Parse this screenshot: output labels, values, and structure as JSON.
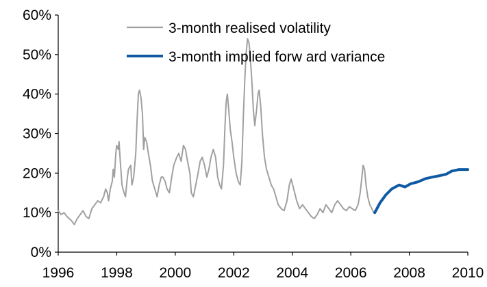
{
  "chart_data": {
    "type": "line",
    "title": "",
    "xlabel": "",
    "ylabel": "",
    "xlim": [
      1996,
      2010
    ],
    "ylim": [
      0,
      60
    ],
    "grid": false,
    "legend_position": "top-center",
    "x_ticks": [
      "1996",
      "1998",
      "2000",
      "2002",
      "2004",
      "2006",
      "2008",
      "2010"
    ],
    "y_ticks": [
      "0%",
      "10%",
      "20%",
      "30%",
      "40%",
      "50%",
      "60%"
    ],
    "series": [
      {
        "name": "3-month realised volatility",
        "color": "#a0a0a0",
        "points": [
          [
            1996.0,
            10.5
          ],
          [
            1996.1,
            9.5
          ],
          [
            1996.2,
            10.0
          ],
          [
            1996.3,
            9.0
          ],
          [
            1996.45,
            8.0
          ],
          [
            1996.55,
            7.0
          ],
          [
            1996.65,
            8.5
          ],
          [
            1996.75,
            9.5
          ],
          [
            1996.85,
            10.5
          ],
          [
            1996.95,
            9.0
          ],
          [
            1997.05,
            8.5
          ],
          [
            1997.15,
            11.0
          ],
          [
            1997.25,
            12.0
          ],
          [
            1997.35,
            13.0
          ],
          [
            1997.45,
            12.5
          ],
          [
            1997.55,
            14.0
          ],
          [
            1997.62,
            16.0
          ],
          [
            1997.68,
            15.0
          ],
          [
            1997.72,
            13.0
          ],
          [
            1997.78,
            16.0
          ],
          [
            1997.85,
            18.0
          ],
          [
            1997.88,
            21.0
          ],
          [
            1997.92,
            19.0
          ],
          [
            1997.97,
            25.0
          ],
          [
            1998.0,
            27.0
          ],
          [
            1998.05,
            26.0
          ],
          [
            1998.08,
            28.0
          ],
          [
            1998.12,
            23.0
          ],
          [
            1998.18,
            17.0
          ],
          [
            1998.25,
            15.0
          ],
          [
            1998.3,
            14.0
          ],
          [
            1998.35,
            18.0
          ],
          [
            1998.4,
            21.0
          ],
          [
            1998.48,
            22.0
          ],
          [
            1998.52,
            17.0
          ],
          [
            1998.58,
            19.0
          ],
          [
            1998.65,
            25.0
          ],
          [
            1998.7,
            34.0
          ],
          [
            1998.74,
            40.0
          ],
          [
            1998.78,
            41.0
          ],
          [
            1998.83,
            39.0
          ],
          [
            1998.88,
            35.0
          ],
          [
            1998.92,
            26.0
          ],
          [
            1998.96,
            29.0
          ],
          [
            1999.02,
            28.0
          ],
          [
            1999.08,
            25.0
          ],
          [
            1999.15,
            22.0
          ],
          [
            1999.22,
            18.0
          ],
          [
            1999.3,
            16.0
          ],
          [
            1999.38,
            14.0
          ],
          [
            1999.45,
            17.0
          ],
          [
            1999.52,
            19.0
          ],
          [
            1999.58,
            19.0
          ],
          [
            1999.65,
            18.0
          ],
          [
            1999.72,
            16.0
          ],
          [
            1999.8,
            15.0
          ],
          [
            1999.88,
            19.0
          ],
          [
            1999.95,
            22.0
          ],
          [
            2000.05,
            24.0
          ],
          [
            2000.12,
            25.0
          ],
          [
            2000.2,
            23.0
          ],
          [
            2000.28,
            27.0
          ],
          [
            2000.35,
            26.0
          ],
          [
            2000.42,
            23.0
          ],
          [
            2000.5,
            20.0
          ],
          [
            2000.55,
            15.0
          ],
          [
            2000.62,
            14.0
          ],
          [
            2000.7,
            17.0
          ],
          [
            2000.78,
            20.0
          ],
          [
            2000.85,
            23.0
          ],
          [
            2000.92,
            24.0
          ],
          [
            2001.0,
            22.0
          ],
          [
            2001.08,
            19.0
          ],
          [
            2001.15,
            21.0
          ],
          [
            2001.22,
            24.0
          ],
          [
            2001.3,
            26.0
          ],
          [
            2001.38,
            24.0
          ],
          [
            2001.45,
            19.0
          ],
          [
            2001.52,
            17.0
          ],
          [
            2001.58,
            16.0
          ],
          [
            2001.65,
            22.0
          ],
          [
            2001.7,
            32.0
          ],
          [
            2001.74,
            38.0
          ],
          [
            2001.78,
            40.0
          ],
          [
            2001.83,
            36.0
          ],
          [
            2001.88,
            31.0
          ],
          [
            2001.94,
            28.0
          ],
          [
            2002.0,
            24.0
          ],
          [
            2002.08,
            20.0
          ],
          [
            2002.15,
            18.0
          ],
          [
            2002.22,
            17.0
          ],
          [
            2002.28,
            23.0
          ],
          [
            2002.33,
            35.0
          ],
          [
            2002.38,
            44.0
          ],
          [
            2002.42,
            50.0
          ],
          [
            2002.47,
            54.0
          ],
          [
            2002.52,
            53.0
          ],
          [
            2002.56,
            50.0
          ],
          [
            2002.62,
            43.0
          ],
          [
            2002.67,
            36.0
          ],
          [
            2002.72,
            32.0
          ],
          [
            2002.78,
            36.0
          ],
          [
            2002.83,
            40.0
          ],
          [
            2002.87,
            41.0
          ],
          [
            2002.92,
            37.0
          ],
          [
            2002.98,
            30.0
          ],
          [
            2003.05,
            24.0
          ],
          [
            2003.12,
            21.0
          ],
          [
            2003.2,
            19.0
          ],
          [
            2003.28,
            17.0
          ],
          [
            2003.36,
            16.0
          ],
          [
            2003.44,
            14.0
          ],
          [
            2003.52,
            12.0
          ],
          [
            2003.62,
            11.0
          ],
          [
            2003.72,
            10.5
          ],
          [
            2003.82,
            13.0
          ],
          [
            2003.9,
            17.0
          ],
          [
            2003.96,
            18.5
          ],
          [
            2004.05,
            16.0
          ],
          [
            2004.15,
            13.0
          ],
          [
            2004.25,
            11.0
          ],
          [
            2004.35,
            12.0
          ],
          [
            2004.45,
            11.0
          ],
          [
            2004.55,
            10.0
          ],
          [
            2004.65,
            9.0
          ],
          [
            2004.75,
            8.5
          ],
          [
            2004.85,
            9.5
          ],
          [
            2004.95,
            11.0
          ],
          [
            2005.05,
            10.0
          ],
          [
            2005.15,
            12.0
          ],
          [
            2005.25,
            11.0
          ],
          [
            2005.35,
            10.0
          ],
          [
            2005.45,
            12.0
          ],
          [
            2005.55,
            13.0
          ],
          [
            2005.65,
            12.0
          ],
          [
            2005.75,
            11.0
          ],
          [
            2005.85,
            10.5
          ],
          [
            2005.95,
            11.5
          ],
          [
            2006.05,
            11.0
          ],
          [
            2006.15,
            10.5
          ],
          [
            2006.25,
            12.0
          ],
          [
            2006.32,
            15.0
          ],
          [
            2006.38,
            19.0
          ],
          [
            2006.42,
            22.0
          ],
          [
            2006.47,
            21.0
          ],
          [
            2006.52,
            17.0
          ],
          [
            2006.58,
            14.0
          ],
          [
            2006.65,
            12.0
          ],
          [
            2006.72,
            11.0
          ],
          [
            2006.78,
            10.0
          ],
          [
            2006.82,
            10.5
          ]
        ]
      },
      {
        "name": "3-month implied forw ard variance",
        "color": "#0f5aa3",
        "points": [
          [
            2006.82,
            10.0
          ],
          [
            2007.0,
            12.5
          ],
          [
            2007.2,
            14.5
          ],
          [
            2007.4,
            16.0
          ],
          [
            2007.65,
            17.0
          ],
          [
            2007.85,
            16.5
          ],
          [
            2008.05,
            17.3
          ],
          [
            2008.3,
            17.8
          ],
          [
            2008.55,
            18.6
          ],
          [
            2008.8,
            19.0
          ],
          [
            2009.0,
            19.3
          ],
          [
            2009.25,
            19.7
          ],
          [
            2009.45,
            20.5
          ],
          [
            2009.7,
            20.9
          ],
          [
            2009.9,
            20.9
          ],
          [
            2010.0,
            20.9
          ]
        ]
      }
    ]
  }
}
